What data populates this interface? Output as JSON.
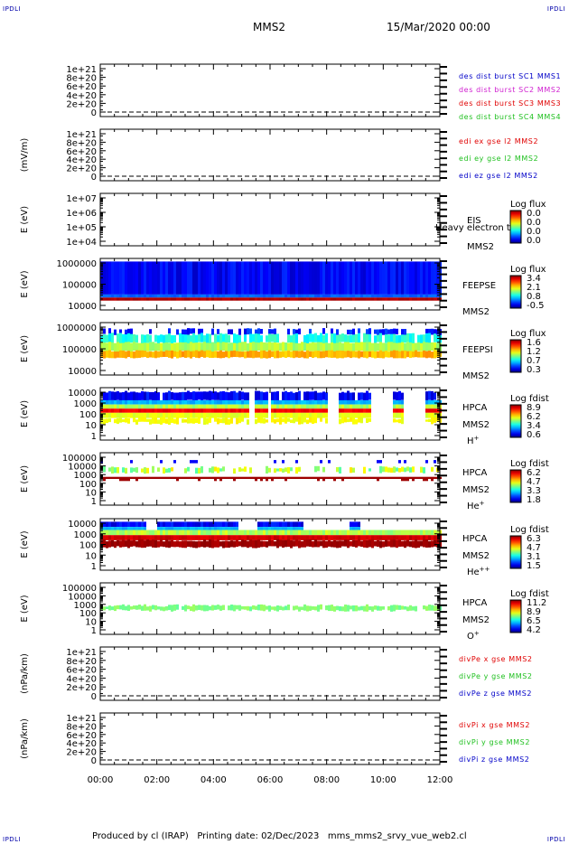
{
  "corners": {
    "tl": "IPDLI",
    "tr": "IPDLI",
    "bl": "IPDLI",
    "br": "IPDLI"
  },
  "header": {
    "spacecraft": "MMS2",
    "datetime": "15/Mar/2020 00:00"
  },
  "footer": "Produced by cl (IRAP)   Printing date: 02/Dec/2023   mms_mms2_srvy_vue_web2.cl",
  "chart_data": [
    {
      "id": "p1",
      "type": "line",
      "ylabel": "",
      "yticks": [
        "1e+21",
        "8e+20",
        "6e+20",
        "4e+20",
        "2e+20",
        "0"
      ],
      "ylim": [
        0,
        1e+21
      ],
      "legend": [
        {
          "text": "des dist burst SC1 MMS1",
          "color": "#0000c8"
        },
        {
          "text": "des dist burst SC2 MMS2",
          "color": "#d020d0"
        },
        {
          "text": "des dist burst SC3 MMS3",
          "color": "#e00000"
        },
        {
          "text": "des dist burst SC4 MMS4",
          "color": "#20c020"
        }
      ]
    },
    {
      "id": "p2",
      "type": "line",
      "ylabel": "(mV/m)",
      "yticks": [
        "1e+21",
        "8e+20",
        "6e+20",
        "4e+20",
        "2e+20",
        "0"
      ],
      "ylim": [
        0,
        1e+21
      ],
      "legend": [
        {
          "text": "edi ex gse l2 MMS2",
          "color": "#e00000"
        },
        {
          "text": "edi ey gse l2 MMS2",
          "color": "#20c020"
        },
        {
          "text": "edi ez gse l2 MMS2",
          "color": "#0000c8"
        }
      ]
    },
    {
      "id": "p3",
      "type": "heatmap",
      "ylabel": "E (eV)",
      "yticks": [
        "1e+07",
        "1e+06",
        "1e+05",
        "1e+04"
      ],
      "log": true,
      "labels": [
        "EIS",
        "MMS2"
      ],
      "overlay": "Heavy electron to",
      "cbar": {
        "title": "Log flux",
        "ticks": [
          "0.0",
          "0.0",
          "0.0",
          "0.0"
        ]
      }
    },
    {
      "id": "p4",
      "type": "heatmap",
      "ylabel": "E (eV)",
      "yticks": [
        "1000000",
        "100000",
        "10000"
      ],
      "log": true,
      "labels": [
        "FEEPSE",
        "MMS2"
      ],
      "cbar": {
        "title": "Log flux",
        "ticks": [
          "3.4",
          "2.1",
          "0.8",
          "-0.5"
        ]
      }
    },
    {
      "id": "p5",
      "type": "heatmap",
      "ylabel": "E (eV)",
      "yticks": [
        "1000000",
        "100000",
        "10000"
      ],
      "log": true,
      "labels": [
        "FEEPSI",
        "MMS2"
      ],
      "cbar": {
        "title": "Log flux",
        "ticks": [
          "1.6",
          "1.2",
          "0.7",
          "0.3"
        ]
      }
    },
    {
      "id": "p6",
      "type": "heatmap",
      "ylabel": "E (eV)",
      "yticks": [
        "10000",
        "1000",
        "100",
        "10",
        "1"
      ],
      "log": true,
      "labels": [
        "HPCA",
        "MMS2",
        "H"
      ],
      "sup": "+",
      "cbar": {
        "title": "Log fdist",
        "ticks": [
          "8.9",
          "6.2",
          "3.4",
          "0.6"
        ]
      }
    },
    {
      "id": "p7",
      "type": "heatmap",
      "ylabel": "E (eV)",
      "yticks": [
        "100000",
        "10000",
        "1000",
        "100",
        "10",
        "1"
      ],
      "log": true,
      "labels": [
        "HPCA",
        "MMS2",
        "He"
      ],
      "sup": "+",
      "cbar": {
        "title": "Log fdist",
        "ticks": [
          "6.2",
          "4.7",
          "3.3",
          "1.8"
        ]
      }
    },
    {
      "id": "p8",
      "type": "heatmap",
      "ylabel": "E (eV)",
      "yticks": [
        "10000",
        "1000",
        "100",
        "10",
        "1"
      ],
      "log": true,
      "labels": [
        "HPCA",
        "MMS2",
        "He"
      ],
      "sup": "++",
      "cbar": {
        "title": "Log fdist",
        "ticks": [
          "6.3",
          "4.7",
          "3.1",
          "1.5"
        ]
      }
    },
    {
      "id": "p9",
      "type": "heatmap",
      "ylabel": "E (eV)",
      "yticks": [
        "100000",
        "10000",
        "1000",
        "100",
        "10",
        "1"
      ],
      "log": true,
      "labels": [
        "HPCA",
        "MMS2",
        "O"
      ],
      "sup": "+",
      "cbar": {
        "title": "Log fdist",
        "ticks": [
          "11.2",
          "8.9",
          "6.5",
          "4.2"
        ]
      }
    },
    {
      "id": "p10",
      "type": "line",
      "ylabel": "(nPa/km)",
      "yticks": [
        "1e+21",
        "8e+20",
        "6e+20",
        "4e+20",
        "2e+20",
        "0"
      ],
      "ylim": [
        0,
        1e+21
      ],
      "legend": [
        {
          "text": "divPe x gse MMS2",
          "color": "#e00000"
        },
        {
          "text": "divPe y gse MMS2",
          "color": "#20c020"
        },
        {
          "text": "divPe z gse MMS2",
          "color": "#0000c8"
        }
      ]
    },
    {
      "id": "p11",
      "type": "line",
      "ylabel": "(nPa/km)",
      "yticks": [
        "1e+21",
        "8e+20",
        "6e+20",
        "4e+20",
        "2e+20",
        "0"
      ],
      "ylim": [
        0,
        1e+21
      ],
      "legend": [
        {
          "text": "divPi x gse MMS2",
          "color": "#e00000"
        },
        {
          "text": "divPi y gse MMS2",
          "color": "#20c020"
        },
        {
          "text": "divPi z gse MMS2",
          "color": "#0000c8"
        }
      ]
    }
  ],
  "xaxis": {
    "ticks": [
      "00:00",
      "02:00",
      "04:00",
      "06:00",
      "08:00",
      "10:00",
      "12:00"
    ],
    "range": [
      "00:00",
      "12:00"
    ]
  }
}
